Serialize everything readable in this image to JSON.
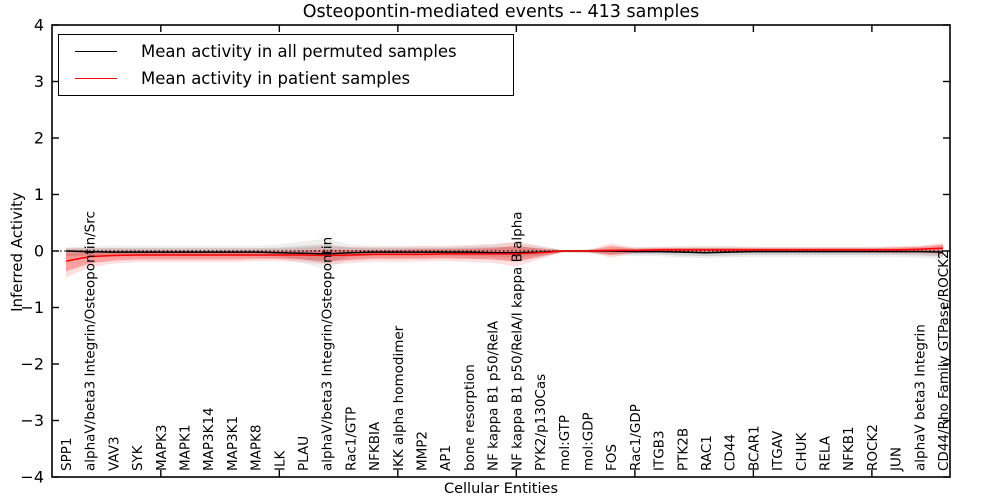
{
  "title": "Osteopontin-mediated events -- 413 samples",
  "legend": {
    "items": [
      {
        "label": "Mean activity in all permuted samples",
        "color": "#000000"
      },
      {
        "label": "Mean activity in patient samples",
        "color": "#ff0000"
      }
    ]
  },
  "chart_data": {
    "type": "line",
    "title": "Osteopontin-mediated events -- 413 samples",
    "xlabel": "Cellular Entities",
    "ylabel": "Inferred Activity",
    "ylim": [
      -4,
      4
    ],
    "yticks": [
      -4,
      -3,
      -2,
      -1,
      0,
      1,
      2,
      3,
      4
    ],
    "xtick_entity_indices": [
      4,
      9,
      14,
      19,
      24,
      29,
      34
    ],
    "grid": false,
    "legend_position": "upper left",
    "zero_line": {
      "y": 0,
      "style": "dotted",
      "color": "#000000"
    },
    "categories": [
      "SPP1",
      "alphaV/beta3 Integrin/Osteopontin/Src",
      "VAV3",
      "SYK",
      "MAPK3",
      "MAPK1",
      "MAP3K14",
      "MAP3K1",
      "MAPK8",
      "ILK",
      "PLAU",
      "alphaV/beta3 Integrin/Osteopontin",
      "Rac1/GTP",
      "NFKBIA",
      "IKK alpha homodimer",
      "MMP2",
      "AP1",
      "bone resorption",
      "NF kappa B1 p50/RelA",
      "NF kappa B1 p50/RelA/I kappa B alpha",
      "PYK2/p130Cas",
      "mol:GTP",
      "mol:GDP",
      "FOS",
      "Rac1/GDP",
      "ITGB3",
      "PTK2B",
      "RAC1",
      "CD44",
      "BCAR1",
      "ITGAV",
      "CHUK",
      "RELA",
      "NFKB1",
      "ROCK2",
      "JUN",
      "alphaV beta3 Integrin",
      "CD44/Rho Family GTPase/ROCK2"
    ],
    "series": [
      {
        "name": "Mean activity in all permuted samples",
        "color": "#000000",
        "band_color": "#555555",
        "values": [
          0.0,
          -0.01,
          -0.02,
          -0.02,
          -0.02,
          -0.02,
          -0.02,
          -0.02,
          -0.02,
          -0.03,
          -0.04,
          -0.05,
          -0.03,
          -0.02,
          -0.02,
          -0.02,
          -0.02,
          -0.02,
          -0.03,
          -0.03,
          -0.02,
          0.0,
          0.0,
          0.0,
          -0.01,
          -0.01,
          -0.02,
          -0.03,
          -0.02,
          -0.01,
          -0.01,
          -0.01,
          -0.01,
          -0.01,
          -0.01,
          -0.01,
          -0.01,
          -0.02
        ],
        "band_upper": [
          0.04,
          0.05,
          0.05,
          0.05,
          0.05,
          0.05,
          0.05,
          0.05,
          0.05,
          0.06,
          0.09,
          0.12,
          0.06,
          0.05,
          0.05,
          0.05,
          0.05,
          0.06,
          0.07,
          0.08,
          0.05,
          0.01,
          0.02,
          0.03,
          0.04,
          0.04,
          0.05,
          0.05,
          0.05,
          0.04,
          0.04,
          0.04,
          0.04,
          0.04,
          0.04,
          0.04,
          0.05,
          0.06
        ],
        "band_lower": [
          -0.09,
          -0.08,
          -0.08,
          -0.08,
          -0.08,
          -0.08,
          -0.08,
          -0.08,
          -0.08,
          -0.1,
          -0.15,
          -0.22,
          -0.1,
          -0.08,
          -0.08,
          -0.08,
          -0.08,
          -0.09,
          -0.1,
          -0.12,
          -0.08,
          -0.02,
          -0.03,
          -0.05,
          -0.06,
          -0.06,
          -0.08,
          -0.09,
          -0.08,
          -0.07,
          -0.07,
          -0.07,
          -0.07,
          -0.07,
          -0.07,
          -0.07,
          -0.08,
          -0.1
        ]
      },
      {
        "name": "Mean activity in patient samples",
        "color": "#ff0000",
        "band_color": "#ff0000",
        "values": [
          -0.18,
          -0.1,
          -0.08,
          -0.07,
          -0.07,
          -0.07,
          -0.07,
          -0.07,
          -0.07,
          -0.07,
          -0.07,
          -0.08,
          -0.07,
          -0.06,
          -0.06,
          -0.06,
          -0.05,
          -0.05,
          -0.05,
          -0.05,
          -0.03,
          0.0,
          0.0,
          0.01,
          0.01,
          0.02,
          0.02,
          0.02,
          0.02,
          0.02,
          0.02,
          0.02,
          0.02,
          0.02,
          0.02,
          0.02,
          0.03,
          0.05
        ],
        "band_upper": [
          -0.03,
          -0.01,
          0.0,
          0.0,
          0.0,
          0.0,
          0.0,
          0.0,
          0.0,
          0.0,
          0.01,
          0.02,
          0.02,
          0.02,
          0.02,
          0.03,
          0.03,
          0.04,
          0.05,
          0.09,
          0.04,
          0.01,
          0.01,
          0.09,
          0.04,
          0.05,
          0.05,
          0.05,
          0.05,
          0.05,
          0.05,
          0.05,
          0.05,
          0.05,
          0.05,
          0.06,
          0.07,
          0.11
        ],
        "band_lower": [
          -0.36,
          -0.22,
          -0.17,
          -0.15,
          -0.15,
          -0.15,
          -0.15,
          -0.15,
          -0.14,
          -0.14,
          -0.15,
          -0.18,
          -0.16,
          -0.14,
          -0.14,
          -0.14,
          -0.13,
          -0.14,
          -0.15,
          -0.19,
          -0.1,
          -0.01,
          -0.01,
          -0.07,
          -0.02,
          -0.01,
          -0.01,
          -0.01,
          -0.01,
          -0.01,
          -0.01,
          -0.01,
          -0.01,
          -0.01,
          -0.01,
          -0.02,
          -0.02,
          -0.03
        ]
      }
    ]
  }
}
